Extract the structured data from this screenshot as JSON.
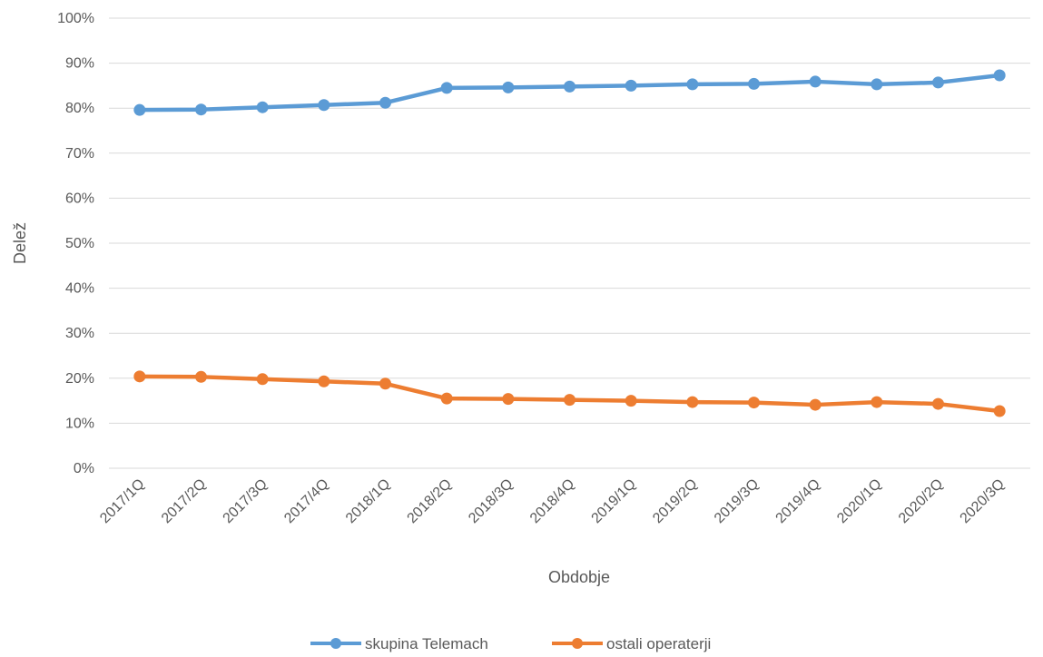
{
  "chart_data": {
    "type": "line",
    "title": "",
    "xlabel": "Obdobje",
    "ylabel": "Delež",
    "categories": [
      "2017/1Q",
      "2017/2Q",
      "2017/3Q",
      "2017/4Q",
      "2018/1Q",
      "2018/2Q",
      "2018/3Q",
      "2018/4Q",
      "2019/1Q",
      "2019/2Q",
      "2019/3Q",
      "2019/4Q",
      "2020/1Q",
      "2020/2Q",
      "2020/3Q"
    ],
    "ylim": [
      0,
      100
    ],
    "yticks": [
      "0%",
      "10%",
      "20%",
      "30%",
      "40%",
      "50%",
      "60%",
      "70%",
      "80%",
      "90%",
      "100%"
    ],
    "grid": true,
    "legend_position": "bottom",
    "series": [
      {
        "name": "skupina Telemach",
        "color": "#5b9bd5",
        "values": [
          79.6,
          79.7,
          80.2,
          80.7,
          81.2,
          84.5,
          84.6,
          84.8,
          85.0,
          85.3,
          85.4,
          85.9,
          85.3,
          85.7,
          87.3
        ]
      },
      {
        "name": "ostali operaterji",
        "color": "#ed7d31",
        "values": [
          20.4,
          20.3,
          19.8,
          19.3,
          18.8,
          15.5,
          15.4,
          15.2,
          15.0,
          14.7,
          14.6,
          14.1,
          14.7,
          14.3,
          12.7
        ]
      }
    ]
  }
}
